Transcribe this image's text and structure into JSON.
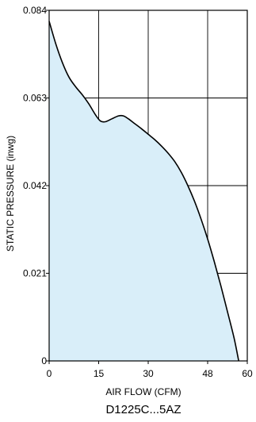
{
  "chart_data": {
    "type": "area",
    "xlabel": "AIR FLOW (CFM)",
    "ylabel": "STATIC PRESSURE (inwg)",
    "caption": "D1225C...5AZ",
    "x_ticks": [
      0,
      15,
      30,
      48,
      60
    ],
    "x_tick_labels": [
      "0",
      "15",
      "30",
      "48",
      "60"
    ],
    "y_ticks": [
      0,
      0.021,
      0.042,
      0.063,
      0.084
    ],
    "y_tick_labels": [
      "0",
      "0.021",
      "0.042",
      "0.063",
      "0.084"
    ],
    "xlim": [
      0,
      60
    ],
    "ylim": [
      0,
      0.084
    ],
    "grid": true,
    "fill_color": "#d9eef9",
    "line_color": "#000000",
    "series": [
      {
        "x": [
          0,
          2,
          4,
          6,
          8,
          10,
          12,
          14,
          15.5,
          17,
          19,
          21,
          22.5,
          24,
          26,
          28,
          30,
          32,
          34,
          36,
          38,
          40,
          42,
          44,
          46,
          48,
          50,
          52,
          54,
          56,
          57.4
        ],
        "y": [
          0.0814,
          0.076,
          0.0715,
          0.068,
          0.0657,
          0.0638,
          0.0616,
          0.059,
          0.0575,
          0.0573,
          0.058,
          0.0587,
          0.0587,
          0.058,
          0.0568,
          0.0556,
          0.0543,
          0.053,
          0.0515,
          0.0498,
          0.0478,
          0.0452,
          0.042,
          0.0383,
          0.034,
          0.0292,
          0.0238,
          0.018,
          0.0118,
          0.0055,
          0.0
        ]
      }
    ]
  }
}
